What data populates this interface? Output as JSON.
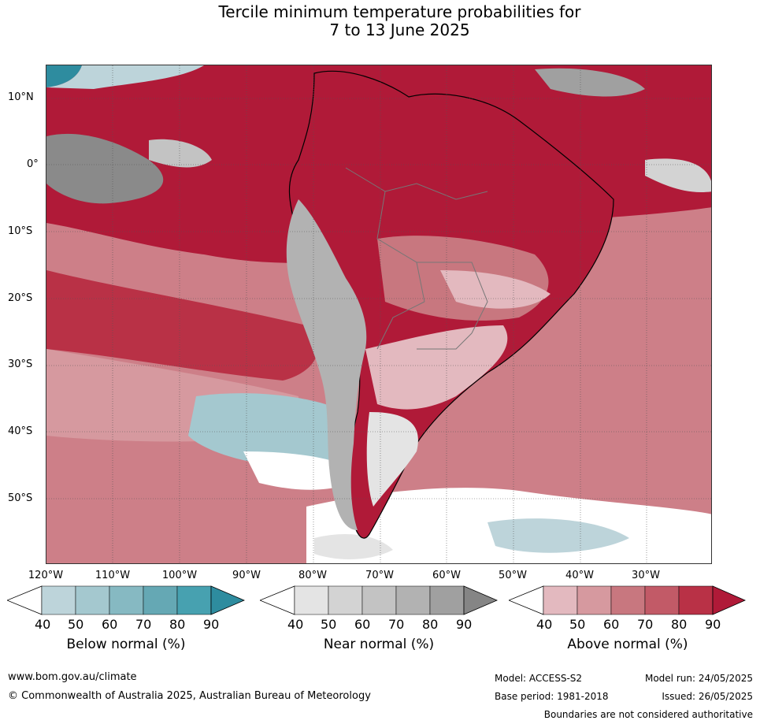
{
  "title": {
    "line1": "Tercile minimum temperature probabilities for",
    "line2": "7 to 13 June 2025"
  },
  "map": {
    "lat_labels": [
      "10°N",
      "0°",
      "10°S",
      "20°S",
      "30°S",
      "40°S",
      "50°S"
    ],
    "lon_labels": [
      "120°W",
      "110°W",
      "100°W",
      "90°W",
      "80°W",
      "70°W",
      "60°W",
      "50°W",
      "40°W",
      "30°W"
    ]
  },
  "colorbars": [
    {
      "title": "Below normal (%)",
      "ticks": [
        "40",
        "50",
        "60",
        "70",
        "80",
        "90"
      ],
      "colors": [
        "#ffffff",
        "#bdd4da",
        "#a4c8cf",
        "#86b9c2",
        "#65a8b4",
        "#47a1b0",
        "#2e8c9f"
      ]
    },
    {
      "title": "Near normal (%)",
      "ticks": [
        "40",
        "50",
        "60",
        "70",
        "80",
        "90"
      ],
      "colors": [
        "#ffffff",
        "#e4e4e4",
        "#d3d3d3",
        "#c3c3c3",
        "#b2b2b2",
        "#a0a0a0",
        "#858585"
      ]
    },
    {
      "title": "Above normal (%)",
      "ticks": [
        "40",
        "50",
        "60",
        "70",
        "80",
        "90"
      ],
      "colors": [
        "#ffffff",
        "#e3b9bf",
        "#d6999f",
        "#c8777f",
        "#c25a67",
        "#b93146",
        "#b01a38"
      ]
    }
  ],
  "footer": {
    "website": "www.bom.gov.au/climate",
    "copyright": "© Commonwealth of Australia 2025, Australian Bureau of Meteorology",
    "model": "Model: ACCESS-S2",
    "base_period": "Base period: 1981-2018",
    "model_run": "Model run: 24/05/2025",
    "issued": "Issued: 26/05/2025",
    "disclaimer": "Boundaries are not considered authoritative"
  }
}
